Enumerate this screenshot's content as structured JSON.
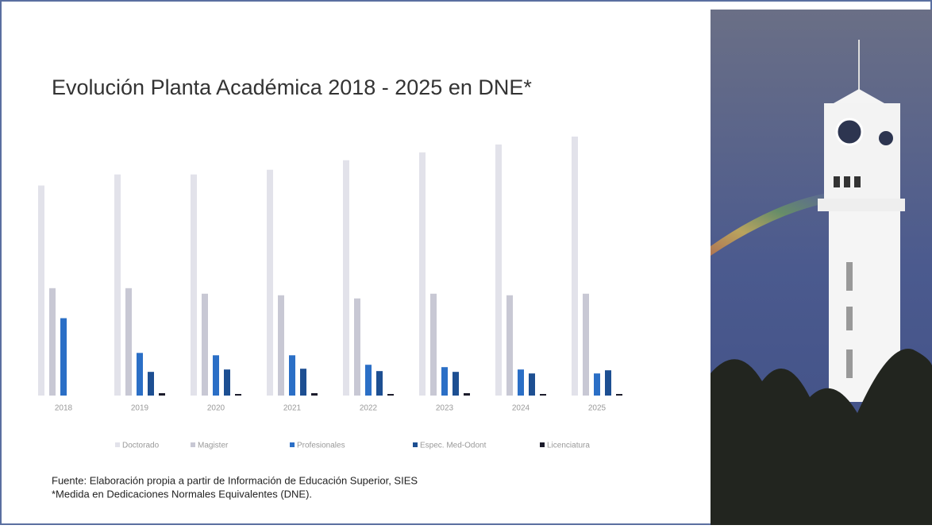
{
  "chart_data": {
    "type": "bar",
    "title": "Evolución Planta Académica 2018 - 2025 en DNE*",
    "categories": [
      "2018",
      "2019",
      "2020",
      "2021",
      "2022",
      "2023",
      "2024",
      "2025"
    ],
    "series": [
      {
        "name": "Doctorado",
        "color": "#e2e2ea",
        "values": [
          266,
          280,
          280,
          286,
          298,
          308,
          318,
          328
        ]
      },
      {
        "name": "Magister",
        "color": "#c8c8d4",
        "values": [
          136,
          136,
          129,
          127,
          123,
          129,
          127,
          129
        ]
      },
      {
        "name": "Profesionales",
        "color": "#2b6fc6",
        "values": [
          98,
          54,
          51,
          51,
          39,
          36,
          33,
          28
        ]
      },
      {
        "name": "Espec. Med-Odont",
        "color": "#1d4f92",
        "values": [
          0,
          30,
          33,
          34,
          31,
          30,
          28,
          32
        ]
      },
      {
        "name": "Licenciatura",
        "color": "#1b1b2b",
        "values": [
          0,
          3,
          2,
          3,
          2,
          3,
          2,
          2
        ]
      }
    ],
    "ylim": [
      0,
      340
    ],
    "notes": [
      "Fuente: Elaboración propia a partir de Información de Educación Superior, SIES",
      "*Medida en Dedicaciones Normales Equivalentes (DNE)."
    ]
  }
}
